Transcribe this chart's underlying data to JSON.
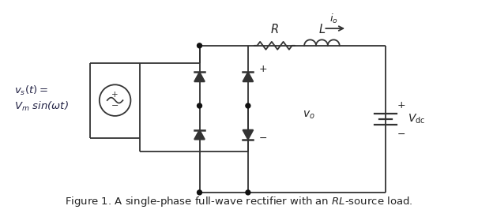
{
  "title": "Figure 1. A single-phase full-wave rectifier with an $RL$-source load.",
  "vs_label_line1": "$v_s(t) =$",
  "vs_label_line2": "$V_m$ sin($\\omega t$)",
  "R_label": "$R$",
  "L_label": "$L$",
  "io_label": "$i_o$",
  "vo_label": "$v_o$",
  "Vdc_label": "$V_{\\rm dc}$",
  "plus": "+",
  "minus": "−",
  "line_color": "#333333",
  "dot_color": "#111111",
  "bg_color": "#ffffff",
  "fig_width": 6.05,
  "fig_height": 2.75,
  "dpi": 100
}
